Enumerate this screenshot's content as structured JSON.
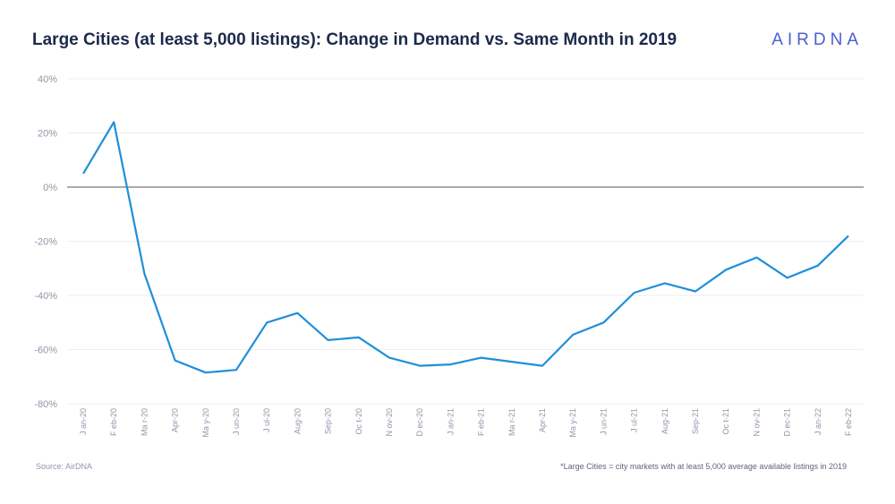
{
  "header": {
    "title": "Large Cities (at least 5,000 listings): Change in Demand vs. Same Month in 2019",
    "logo_text": "AIRDNA"
  },
  "footer": {
    "source": "Source: AirDNA",
    "note": "*Large Cities = city markets with at least 5,000 average available listings in 2019"
  },
  "colors": {
    "line": "#1f8fd9",
    "title": "#1b2a4a",
    "logo": "#4a5fd0",
    "zero_line": "#555555",
    "grid": "#eeeeee"
  },
  "chart_data": {
    "type": "line",
    "title": "Large Cities (at least 5,000 listings): Change in Demand vs. Same Month in 2019",
    "xlabel": "",
    "ylabel": "",
    "ylim": [
      -80,
      40
    ],
    "y_ticks": [
      "40%",
      "20%",
      "0%",
      "-20%",
      "-40%",
      "-60%",
      "-80%"
    ],
    "y_tick_values": [
      40,
      20,
      0,
      -20,
      -40,
      -60,
      -80
    ],
    "grid": true,
    "zero_line": true,
    "categories": [
      "J an-20",
      "F eb-20",
      "Ma r-20",
      "Apr-20",
      "Ma y-20",
      "J un-20",
      "J ul-20",
      "Aug-20",
      "Sep-20",
      "Oc t-20",
      "N ov-20",
      "D ec-20",
      "J an-21",
      "F eb-21",
      "Ma r-21",
      "Apr-21",
      "Ma y-21",
      "J un-21",
      "J ul-21",
      "Aug-21",
      "Sep-21",
      "Oc t-21",
      "N ov-21",
      "D ec-21",
      "J an-22",
      "F eb-22"
    ],
    "series": [
      {
        "values": [
          5,
          24,
          -32,
          -64,
          -68.5,
          -67.5,
          -50,
          -46.5,
          -56.5,
          -55.5,
          -63,
          -66,
          -65.5,
          -63,
          -64.5,
          -66,
          -54.5,
          -50,
          -39,
          -35.5,
          -38.5,
          -30.5,
          -26,
          -33.5,
          -29,
          -18
        ]
      }
    ]
  }
}
